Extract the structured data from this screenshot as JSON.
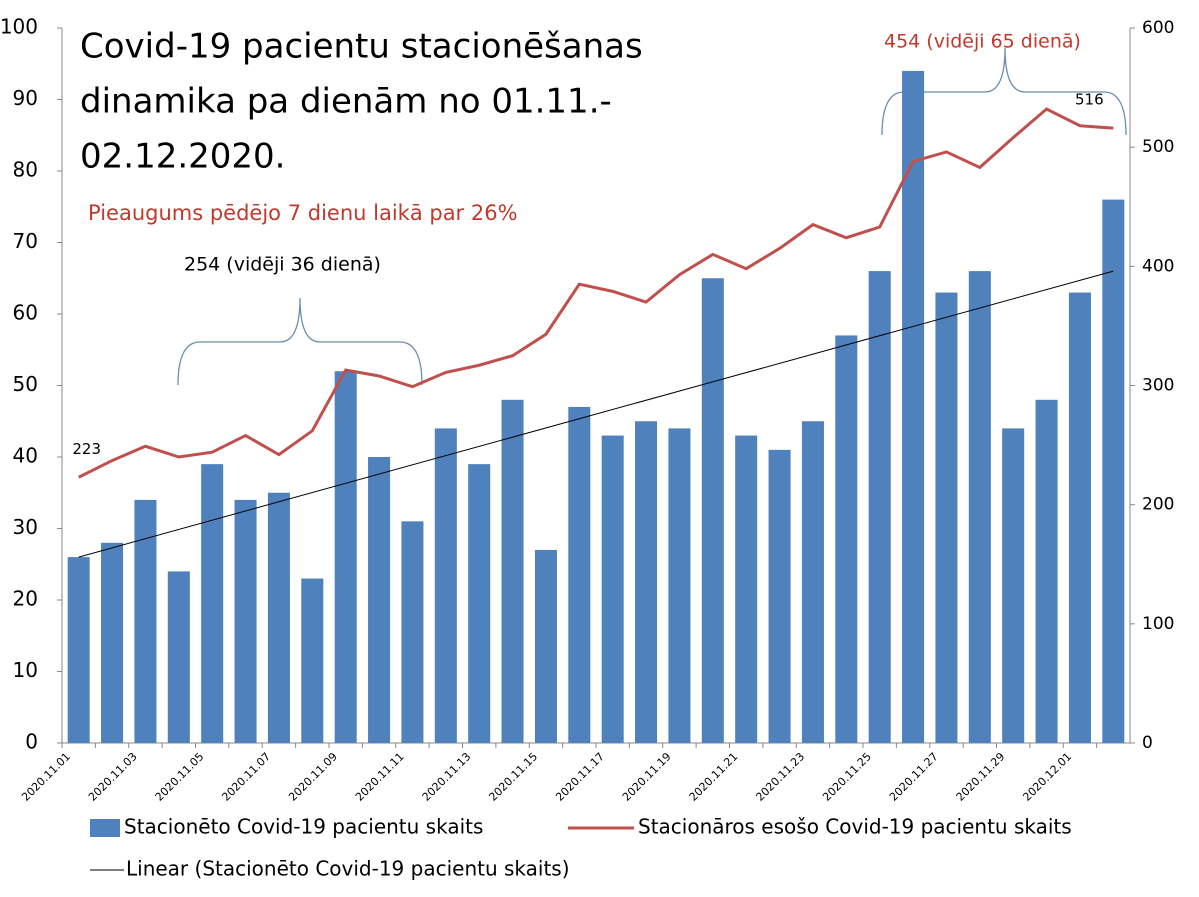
{
  "chart_data": {
    "type": "bar-line",
    "title": [
      "Covid-19 pacientu stacionēšanas",
      "dinamika pa dienām no 01.11.-",
      "02.12.2020."
    ],
    "annotations": [
      "Pieaugums pēdējo  7 dienu laikā par  26%",
      "254 (vidēji 36 dienā)",
      "454 (vidēji 65 dienā)"
    ],
    "categories": [
      "2020.11.01",
      null,
      "2020.11.03",
      null,
      "2020.11.05",
      null,
      "2020.11.07",
      null,
      "2020.11.09",
      null,
      "2020.11.11",
      null,
      "2020.11.13",
      null,
      "2020.11.15",
      null,
      "2020.11.17",
      null,
      "2020.11.19",
      null,
      "2020.11.21",
      null,
      "2020.11.23",
      null,
      "2020.11.25",
      null,
      "2020.11.27",
      null,
      "2020.11.29",
      null,
      "2020.12.01",
      null
    ],
    "series": [
      {
        "name": "Stacionēto Covid-19 pacientu skaits",
        "type": "bar",
        "color": "#4f81bd",
        "values": [
          26,
          28,
          34,
          24,
          39,
          34,
          35,
          23,
          52,
          40,
          31,
          44,
          39,
          48,
          27,
          47,
          43,
          45,
          44,
          65,
          43,
          41,
          45,
          57,
          66,
          94,
          63,
          66,
          44,
          48,
          63,
          76
        ]
      },
      {
        "name": "Stacionāros esošo Covid-19 pacientu skaits",
        "type": "line",
        "axis": "y2",
        "color": "#c0504d",
        "values": [
          223,
          237,
          249,
          240,
          244,
          258,
          242,
          262,
          313,
          308,
          299,
          311,
          317,
          325,
          343,
          385,
          379,
          370,
          393,
          410,
          398,
          415,
          435,
          424,
          433,
          488,
          496,
          483,
          508,
          532,
          518,
          516
        ],
        "value_labels": [
          "223",
          null,
          null,
          null,
          null,
          null,
          null,
          null,
          null,
          null,
          null,
          null,
          null,
          null,
          null,
          null,
          null,
          null,
          null,
          null,
          null,
          null,
          null,
          null,
          null,
          null,
          null,
          null,
          null,
          null,
          null,
          "516"
        ]
      }
    ],
    "trendline": {
      "name": "Linear (Stacionēto Covid-19 pacientu skaits)",
      "color": "#000000",
      "start": 26,
      "end": 66
    },
    "ylim": [
      0,
      100
    ],
    "yticks": [
      0,
      10,
      20,
      30,
      40,
      50,
      60,
      70,
      80,
      90,
      100
    ],
    "y2lim": [
      0,
      600
    ],
    "y2ticks": [
      0,
      100,
      200,
      300,
      400,
      500,
      600
    ],
    "grid": false
  }
}
